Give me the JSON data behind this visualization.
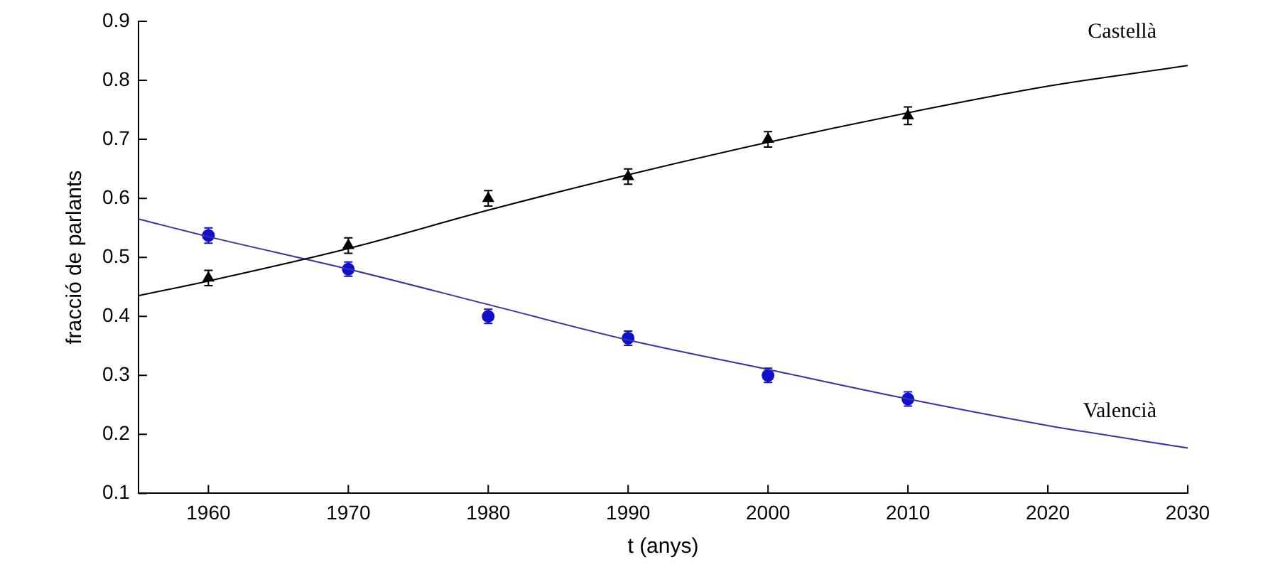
{
  "chart_data": {
    "type": "scatter",
    "xlabel": "t (anys)",
    "ylabel": "fracció de parlants",
    "xlim": [
      1955,
      2030
    ],
    "xticks": [
      1960,
      1970,
      1980,
      1990,
      2000,
      2010,
      2020,
      2030
    ],
    "ylim": [
      0.1,
      0.9
    ],
    "yticks": [
      0.1,
      0.2,
      0.3,
      0.4,
      0.5,
      0.6,
      0.7,
      0.8,
      0.9
    ],
    "grid": false,
    "legend": false,
    "series": [
      {
        "type": "line",
        "name": "Castellà",
        "color": "#000000",
        "marker": "none",
        "x": [
          1955,
          1960,
          1970,
          1980,
          1990,
          2000,
          2010,
          2020,
          2030
        ],
        "values": [
          0.435,
          0.46,
          0.515,
          0.58,
          0.64,
          0.695,
          0.745,
          0.79,
          0.825
        ]
      },
      {
        "type": "line",
        "name": "Valencià",
        "color": "#3333aa",
        "marker": "none",
        "x": [
          1955,
          1960,
          1970,
          1980,
          1990,
          2000,
          2010,
          2020,
          2030
        ],
        "values": [
          0.565,
          0.535,
          0.48,
          0.42,
          0.36,
          0.31,
          0.26,
          0.215,
          0.177
        ]
      },
      {
        "color": "#000000",
        "marker": "triangle",
        "x": [
          1960,
          1970,
          1980,
          1990,
          2000,
          2010
        ],
        "values": [
          0.465,
          0.52,
          0.6,
          0.637,
          0.7,
          0.74
        ],
        "errors": [
          0.013,
          0.013,
          0.013,
          0.013,
          0.013,
          0.015
        ]
      },
      {
        "color": "#1010cc",
        "marker": "circle",
        "x": [
          1960,
          1970,
          1980,
          1990,
          2000,
          2010
        ],
        "values": [
          0.537,
          0.48,
          0.4,
          0.363,
          0.3,
          0.26
        ],
        "errors": [
          0.013,
          0.012,
          0.012,
          0.012,
          0.012,
          0.012
        ]
      }
    ]
  }
}
